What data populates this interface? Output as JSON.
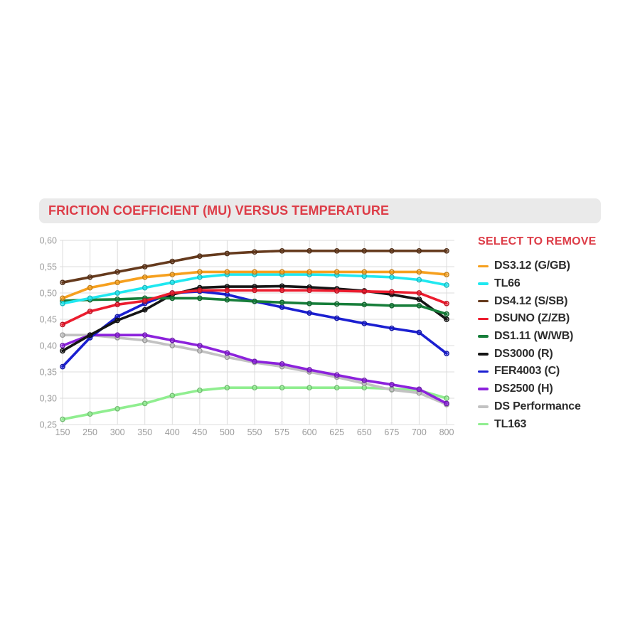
{
  "header": {
    "title": "FRICTION COEFFICIENT (MU) VERSUS TEMPERATURE"
  },
  "legend": {
    "title": "SELECT TO REMOVE"
  },
  "colors": {
    "accent_red": "#dd3d48",
    "title_bar_bg": "#eaeaea",
    "axis_label": "#9b9b9b",
    "gridline": "#dcdcdc"
  },
  "chart_data": {
    "type": "line",
    "title": "FRICTION COEFFICIENT (MU) VERSUS TEMPERATURE",
    "xlabel": "",
    "ylabel": "",
    "grid": true,
    "legend_position": "right",
    "legend_title": "SELECT TO REMOVE",
    "categories": [
      "150",
      "250",
      "300",
      "350",
      "400",
      "450",
      "500",
      "550",
      "575",
      "600",
      "625",
      "650",
      "675",
      "700",
      "800"
    ],
    "y_axis": {
      "min": 0.25,
      "max": 0.6,
      "step": 0.05,
      "decimal_separator": ",",
      "tick_labels": [
        "0,60",
        "0,55",
        "0,50",
        "0,45",
        "0,40",
        "0,35",
        "0,30",
        "0,25"
      ]
    },
    "series": [
      {
        "name": "DS3.12 (G/GB)",
        "color": "#f6a01e",
        "values": [
          0.49,
          0.51,
          0.52,
          0.53,
          0.535,
          0.54,
          0.54,
          0.54,
          0.54,
          0.54,
          0.54,
          0.54,
          0.54,
          0.54,
          0.535
        ]
      },
      {
        "name": "TL66",
        "color": "#1fe8f0",
        "values": [
          0.48,
          0.49,
          0.5,
          0.51,
          0.52,
          0.53,
          0.535,
          0.535,
          0.535,
          0.535,
          0.534,
          0.532,
          0.53,
          0.525,
          0.515
        ]
      },
      {
        "name": "DS4.12 (S/SB)",
        "color": "#653a1d",
        "values": [
          0.52,
          0.53,
          0.54,
          0.55,
          0.56,
          0.57,
          0.575,
          0.578,
          0.58,
          0.58,
          0.58,
          0.58,
          0.58,
          0.58,
          0.58
        ]
      },
      {
        "name": "DSUNO (Z/ZB)",
        "color": "#ec1c2e",
        "values": [
          0.44,
          0.465,
          0.478,
          0.485,
          0.5,
          0.505,
          0.505,
          0.505,
          0.505,
          0.505,
          0.504,
          0.503,
          0.502,
          0.5,
          0.48
        ]
      },
      {
        "name": "DS1.11 (W/WB)",
        "color": "#177e3a",
        "values": [
          0.485,
          0.487,
          0.488,
          0.49,
          0.49,
          0.49,
          0.487,
          0.484,
          0.482,
          0.48,
          0.479,
          0.478,
          0.476,
          0.476,
          0.46
        ]
      },
      {
        "name": "DS3000 (R)",
        "color": "#151515",
        "values": [
          0.39,
          0.42,
          0.448,
          0.468,
          0.497,
          0.51,
          0.512,
          0.512,
          0.513,
          0.511,
          0.508,
          0.504,
          0.497,
          0.488,
          0.45
        ]
      },
      {
        "name": "FER4003 (C)",
        "color": "#1b1fd1",
        "values": [
          0.36,
          0.415,
          0.455,
          0.48,
          0.5,
          0.503,
          0.497,
          0.484,
          0.473,
          0.462,
          0.452,
          0.442,
          0.433,
          0.425,
          0.385
        ]
      },
      {
        "name": "DS2500 (H)",
        "color": "#8c22dc",
        "values": [
          0.4,
          0.42,
          0.42,
          0.42,
          0.41,
          0.4,
          0.386,
          0.37,
          0.365,
          0.354,
          0.344,
          0.334,
          0.326,
          0.317,
          0.29
        ]
      },
      {
        "name": "DS Performance",
        "color": "#c2c2c2",
        "values": [
          0.42,
          0.42,
          0.415,
          0.41,
          0.4,
          0.39,
          0.378,
          0.368,
          0.36,
          0.35,
          0.34,
          0.328,
          0.316,
          0.31,
          0.288
        ]
      },
      {
        "name": "TL163",
        "color": "#90ee90",
        "values": [
          0.26,
          0.27,
          0.28,
          0.29,
          0.305,
          0.315,
          0.32,
          0.32,
          0.32,
          0.32,
          0.32,
          0.32,
          0.318,
          0.315,
          0.3
        ]
      }
    ],
    "draw_order": [
      9,
      8,
      7,
      6,
      5,
      4,
      3,
      2,
      1,
      0
    ]
  }
}
